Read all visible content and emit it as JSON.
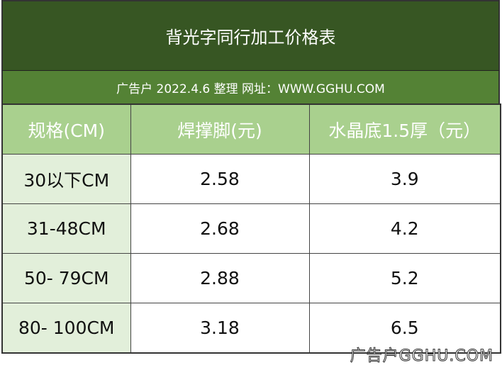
{
  "header": {
    "title": "背光字同行加工价格表",
    "subtitle": "广告户 2022.4.6  整理 网址：WWW.GGHU.COM"
  },
  "table": {
    "columns": [
      "规格(CM)",
      "焊撑脚(元)",
      "水晶底1.5厚（元）"
    ],
    "rows": [
      [
        "30以下CM",
        "2.58",
        "3.9"
      ],
      [
        "31-48CM",
        "2.68",
        "4.2"
      ],
      [
        "50- 79CM",
        "2.88",
        "5.2"
      ],
      [
        "80- 100CM",
        "3.18",
        "6.5"
      ]
    ]
  },
  "watermark": "广告户GGHU.COM"
}
